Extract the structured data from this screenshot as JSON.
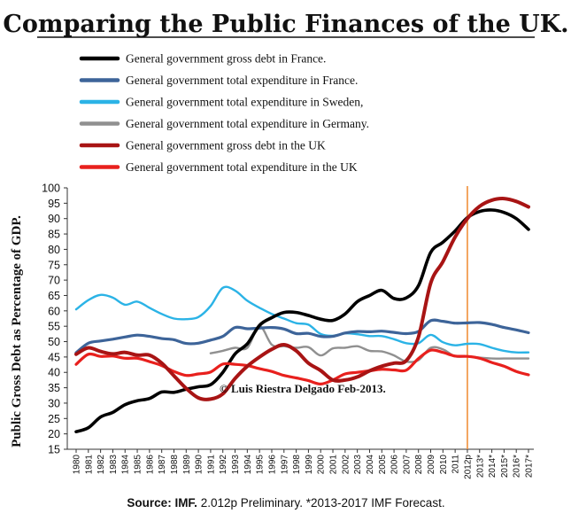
{
  "chart_data": {
    "type": "line",
    "title": "Comparing the Public Finances of the UK.",
    "ylabel": "Public Gross Debt as Percentage of GDP.",
    "xlabel": "",
    "ylim": [
      15,
      100
    ],
    "yticks": [
      15,
      20,
      25,
      30,
      35,
      40,
      45,
      50,
      55,
      60,
      65,
      70,
      75,
      80,
      85,
      90,
      95,
      100
    ],
    "grid": false,
    "legend_position": "top",
    "x": [
      "1980",
      "1981",
      "1982",
      "1983",
      "1984",
      "1985",
      "1986",
      "1987",
      "1988",
      "1989",
      "1990",
      "1991",
      "1992",
      "1993",
      "1994",
      "1995",
      "1996",
      "1997",
      "1998",
      "1999",
      "2000",
      "2001",
      "2002",
      "2003",
      "2004",
      "2005",
      "2006",
      "2007",
      "2008",
      "2009",
      "2010",
      "2011",
      "2012p",
      "2013*",
      "2014*",
      "2015*",
      "2016*",
      "2017*"
    ],
    "series": [
      {
        "name": "General government gross debt in France.",
        "color": "#000000",
        "values": [
          20.7,
          22,
          25.5,
          27,
          29.5,
          30.8,
          31.5,
          33.6,
          33.5,
          34.5,
          35.3,
          36,
          40,
          46,
          49.3,
          55.3,
          57.8,
          59.5,
          59.5,
          58.5,
          57.3,
          56.9,
          59,
          63,
          65,
          66.7,
          64,
          64.2,
          68.2,
          79,
          82.3,
          86,
          90.3,
          92.3,
          92.8,
          92,
          90,
          86.5
        ]
      },
      {
        "name": "General government total expenditure in France.",
        "color": "#3d6499",
        "values": [
          46.4,
          49.5,
          50.2,
          50.8,
          51.5,
          52.1,
          51.7,
          51.0,
          50.6,
          49.4,
          49.5,
          50.5,
          51.7,
          54.6,
          54.2,
          54.4,
          54.6,
          54.1,
          52.6,
          52.7,
          51.7,
          51.7,
          52.8,
          53.3,
          53.2,
          53.4,
          53,
          52.6,
          53.3,
          56.8,
          56.6,
          56,
          56.1,
          56.2,
          55.6,
          54.6,
          53.8,
          52.9
        ]
      },
      {
        "name": "General government total expenditure in Sweden,",
        "color": "#2bb3e6",
        "values": [
          60.5,
          63.5,
          65.2,
          64.3,
          62,
          63,
          61,
          59,
          57.5,
          57.3,
          58,
          61.6,
          67.5,
          66.6,
          63.3,
          61,
          59,
          57.5,
          56,
          55.5,
          52.5,
          51.9,
          52.7,
          52.4,
          51.8,
          51.8,
          50.8,
          49.5,
          49.5,
          52.2,
          49.8,
          48.8,
          49.3,
          49.2,
          48,
          47,
          46.5,
          46.5
        ]
      },
      {
        "name": "General government total expenditure in Germany.",
        "color": "#909090",
        "values": [
          null,
          null,
          null,
          null,
          null,
          null,
          null,
          null,
          null,
          null,
          null,
          46.2,
          47,
          48,
          48,
          55,
          49,
          48.5,
          48,
          48.2,
          45.5,
          47.8,
          48,
          48.5,
          47,
          46.8,
          45.5,
          43.5,
          44,
          48,
          47.5,
          45.2,
          45.2,
          44.8,
          44.5,
          44.5,
          44.5,
          44.5
        ]
      },
      {
        "name": "General government gross debt in the UK",
        "color": "#a81414",
        "values": [
          45.9,
          48,
          46.8,
          46,
          46.5,
          45.6,
          45.6,
          43,
          38.9,
          34.8,
          31.7,
          31.3,
          33,
          38,
          42,
          45,
          47.5,
          49,
          47,
          43,
          40.6,
          37.5,
          37.5,
          38.5,
          40.5,
          42,
          43,
          43.8,
          51.5,
          69,
          76,
          84,
          90,
          94,
          96,
          96.5,
          95.6,
          93.8
        ]
      },
      {
        "name": "General government total expenditure in the UK",
        "color": "#e8201d",
        "values": [
          42.6,
          45.9,
          45.2,
          45.3,
          44.6,
          44.6,
          43.5,
          42.2,
          40.3,
          39,
          39.5,
          40.1,
          42.7,
          42.6,
          42.2,
          41.2,
          40.3,
          39,
          38.2,
          37.3,
          36.2,
          37.5,
          39.5,
          40,
          40.5,
          41,
          40.8,
          40.7,
          44.5,
          47.2,
          46.5,
          45.3,
          45.2,
          44.6,
          43.2,
          42,
          40.3,
          39.2
        ]
      }
    ],
    "annotations": [
      {
        "text": "© Luis Riestra Delgado Feb-2013."
      }
    ],
    "forecast_marker_after": "2012p",
    "forecast_marker_color": "#f0903a"
  },
  "source_note": {
    "source_label": "Source: ",
    "source_org": "IMF.",
    "rest": " 2.012p  Preliminary. *2013-2017  IMF Forecast."
  }
}
